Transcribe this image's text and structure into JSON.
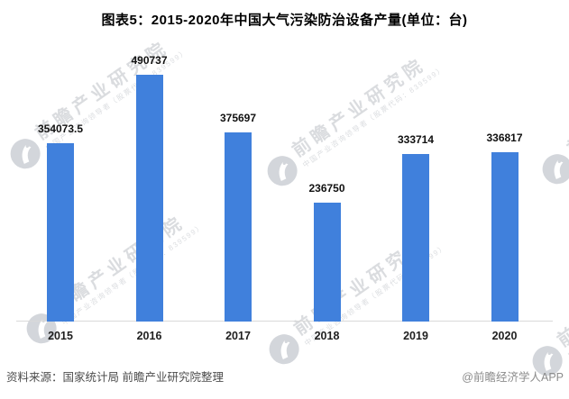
{
  "chart_data": {
    "type": "bar",
    "title": "图表5：2015-2020年中国大气污染防治设备产量(单位：台)",
    "unit": "台",
    "categories": [
      "2015",
      "2016",
      "2017",
      "2018",
      "2019",
      "2020"
    ],
    "values": [
      354073.5,
      490737,
      375697,
      236750,
      333714,
      336817
    ],
    "value_labels": [
      "354073.5",
      "490737",
      "375697",
      "236750",
      "333714",
      "336817"
    ],
    "ylim": [
      0,
      500000
    ],
    "grid": false,
    "legend": false,
    "y_axis_visible": false,
    "bar_color": "#4080DC",
    "axis_line_color": "#d9d9d9"
  },
  "footer": {
    "source": "资料来源：国家统计局 前瞻产业研究院整理",
    "credit": "@前瞻经济学人APP"
  },
  "watermark": {
    "big_text": "前瞻产业研究院",
    "small_text": "中国产业咨询领导者（股票代码：839599）"
  }
}
